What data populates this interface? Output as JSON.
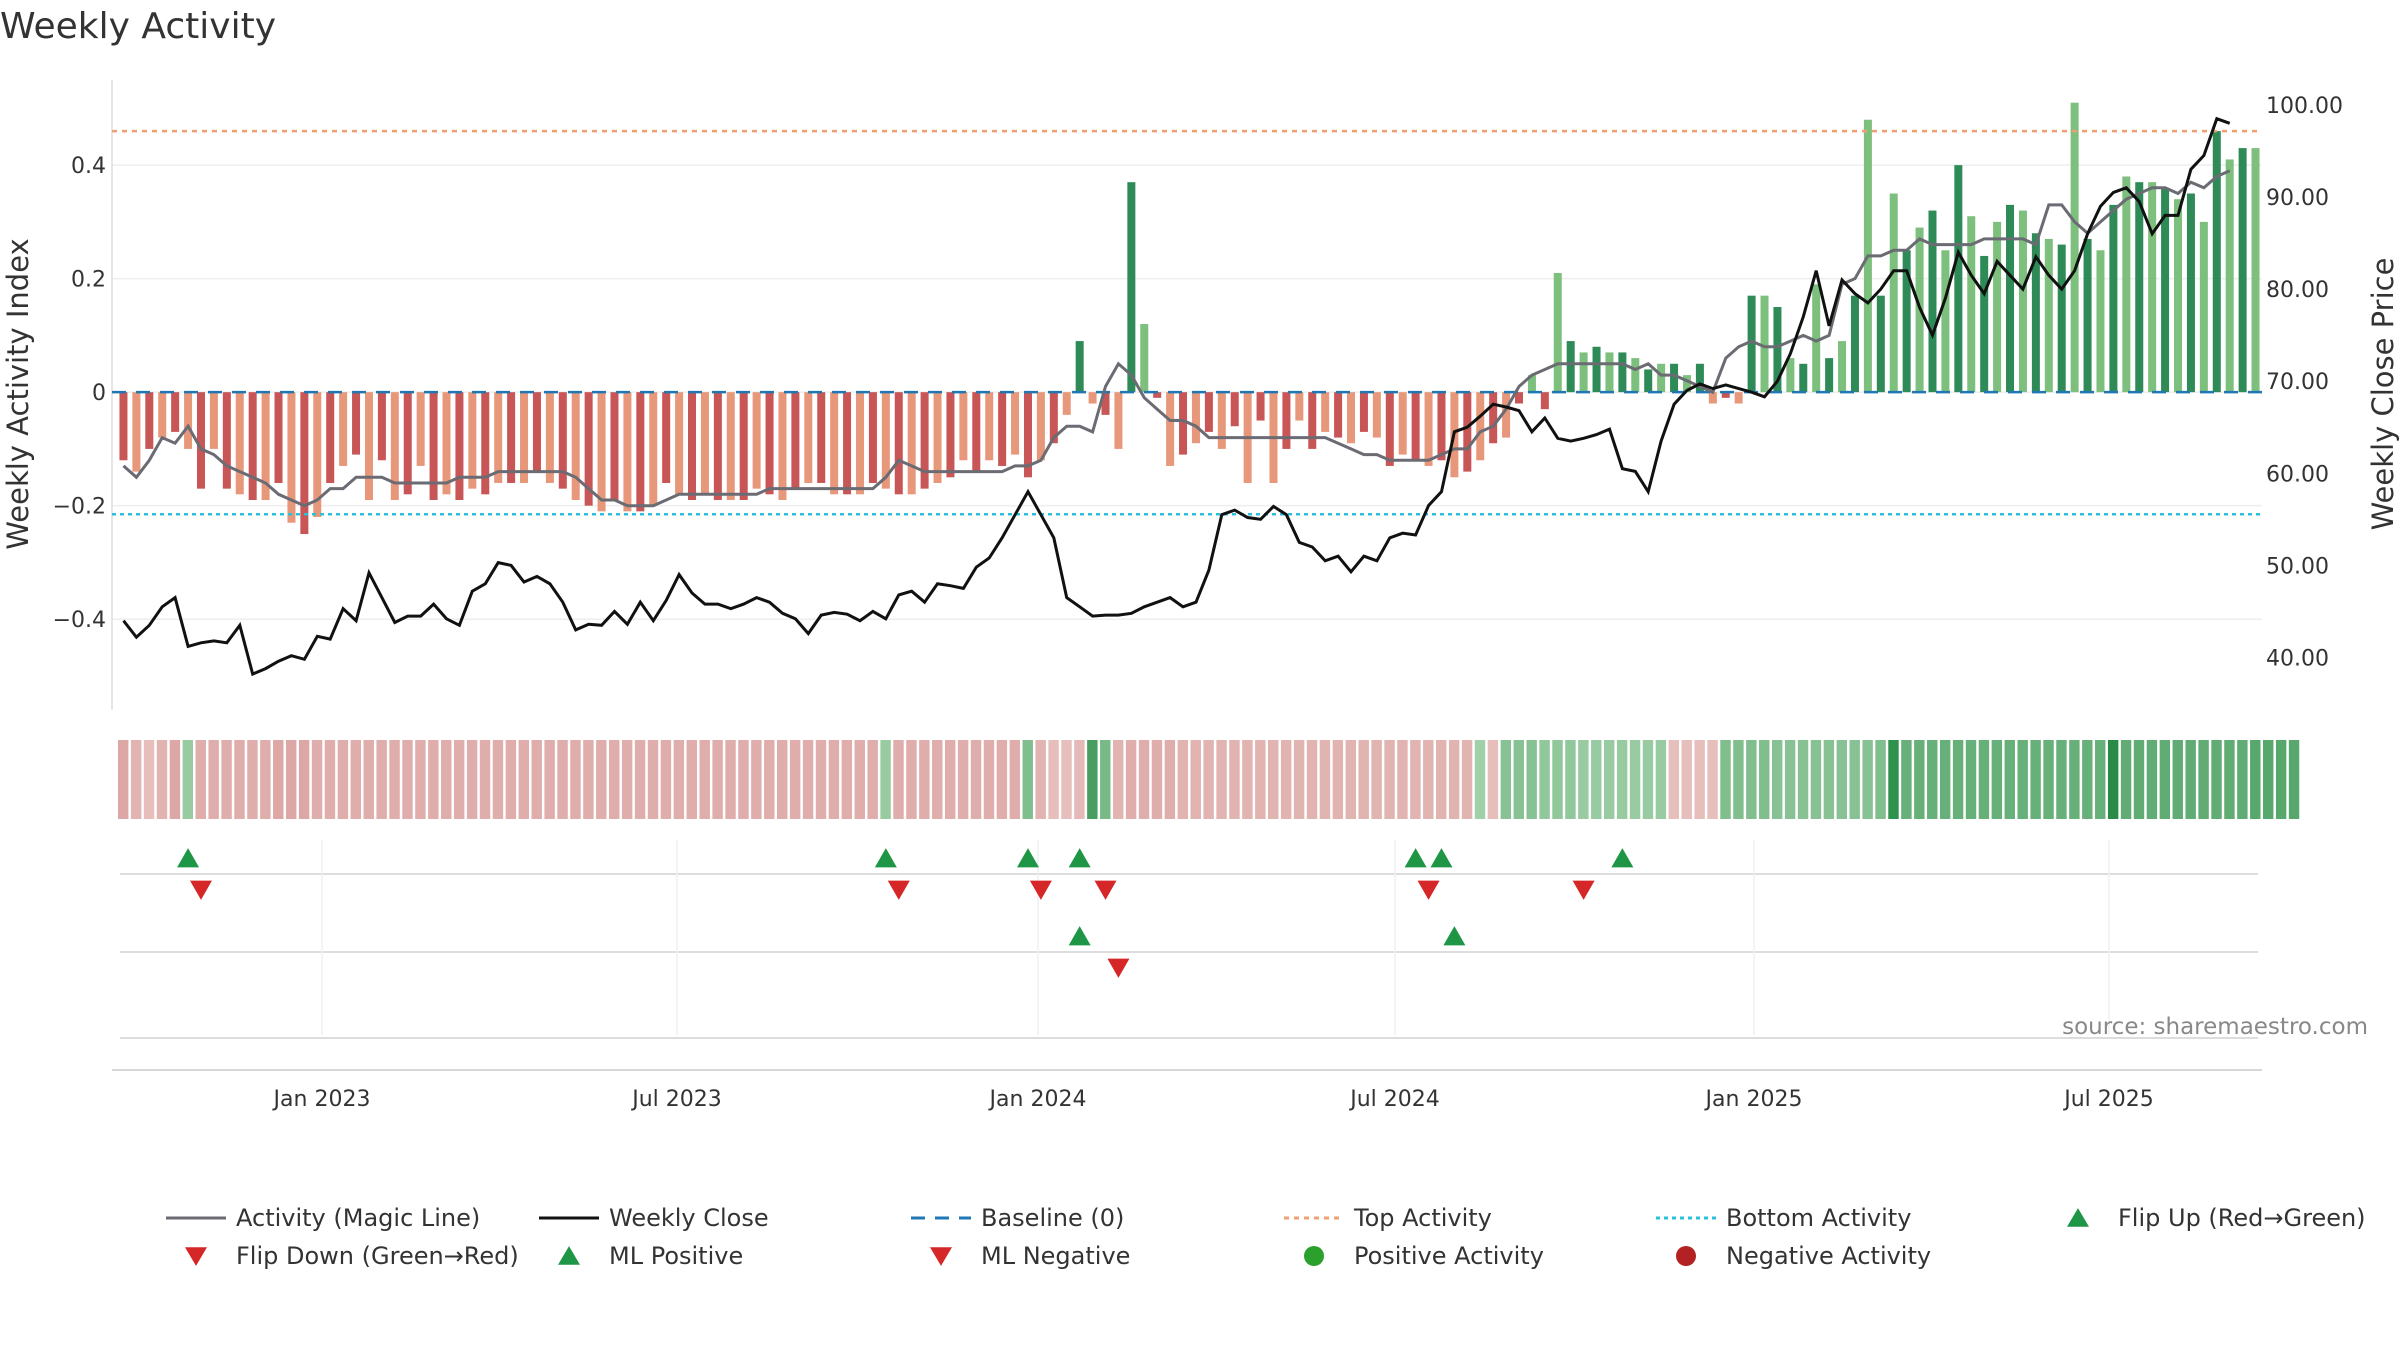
{
  "chart_data": {
    "type": "bar",
    "title": "Weekly Activity",
    "ylabel_left": "Weekly Activity Index",
    "ylabel_right": "Weekly Close Price",
    "left_ticks": [
      "0.4",
      "0.2",
      "0",
      "−0.2",
      "−0.4"
    ],
    "left_tick_values": [
      0.4,
      0.2,
      0,
      -0.2,
      -0.4
    ],
    "right_ticks": [
      "100.00",
      "90.00",
      "80.00",
      "70.00",
      "60.00",
      "50.00",
      "40.00"
    ],
    "right_tick_values": [
      100,
      90,
      80,
      70,
      60,
      50,
      40
    ],
    "ylim_left": [
      -0.56,
      0.55
    ],
    "ylim_right": [
      34.3,
      102.7
    ],
    "x_ticks": [
      "Jan 2023",
      "Jul 2023",
      "Jan 2024",
      "Jul 2024",
      "Jan 2025",
      "Jul 2025"
    ],
    "top_activity": 0.46,
    "bottom_activity": -0.215,
    "baseline": 0,
    "colors": {
      "pos_dark": "#2e8b57",
      "pos_light": "#7dbf7d",
      "neg_dark": "#c85656",
      "neg_light": "#e8987a",
      "magic_line": "#6b6b73",
      "close_line": "#111111",
      "baseline": "#1f77b4",
      "top": "#f0a070",
      "bottom": "#29c0dc",
      "flip_up": "#1e9646",
      "flip_down": "#d62728",
      "pos_dot": "#2ca02c",
      "neg_dot": "#b22222"
    },
    "activity": [
      -0.12,
      -0.14,
      -0.1,
      -0.08,
      -0.07,
      -0.1,
      -0.17,
      -0.1,
      -0.17,
      -0.18,
      -0.19,
      -0.19,
      -0.16,
      -0.23,
      -0.25,
      -0.22,
      -0.16,
      -0.13,
      -0.11,
      -0.19,
      -0.12,
      -0.19,
      -0.18,
      -0.13,
      -0.19,
      -0.18,
      -0.19,
      -0.17,
      -0.18,
      -0.16,
      -0.16,
      -0.16,
      -0.14,
      -0.16,
      -0.17,
      -0.19,
      -0.2,
      -0.21,
      -0.19,
      -0.21,
      -0.21,
      -0.2,
      -0.16,
      -0.18,
      -0.19,
      -0.18,
      -0.19,
      -0.19,
      -0.19,
      -0.17,
      -0.18,
      -0.19,
      -0.17,
      -0.16,
      -0.16,
      -0.18,
      -0.18,
      -0.18,
      -0.16,
      -0.17,
      -0.18,
      -0.18,
      -0.17,
      -0.16,
      -0.15,
      -0.12,
      -0.14,
      -0.12,
      -0.13,
      -0.11,
      -0.15,
      -0.12,
      -0.09,
      -0.04,
      0.09,
      -0.02,
      -0.04,
      -0.1,
      0.37,
      0.12,
      -0.01,
      -0.13,
      -0.11,
      -0.09,
      -0.07,
      -0.1,
      -0.06,
      -0.16,
      -0.05,
      -0.16,
      -0.1,
      -0.05,
      -0.1,
      -0.07,
      -0.08,
      -0.09,
      -0.07,
      -0.08,
      -0.13,
      -0.11,
      -0.12,
      -0.13,
      -0.12,
      -0.15,
      -0.14,
      -0.12,
      -0.09,
      -0.08,
      -0.02,
      0.03,
      -0.03,
      0.21,
      0.09,
      0.07,
      0.08,
      0.07,
      0.07,
      0.06,
      0.04,
      0.05,
      0.05,
      0.03,
      0.05,
      -0.02,
      -0.01,
      -0.02,
      0.17,
      0.17,
      0.15,
      0.06,
      0.05,
      0.19,
      0.06,
      0.09,
      0.17,
      0.48,
      0.17,
      0.35,
      0.25,
      0.29,
      0.32,
      0.25,
      0.4,
      0.31,
      0.24,
      0.3,
      0.33,
      0.32,
      0.28,
      0.27,
      0.26,
      0.51,
      0.27,
      0.25,
      0.33,
      0.38,
      0.37,
      0.37,
      0.36,
      0.34,
      0.35,
      0.3,
      0.46,
      0.41,
      0.43,
      0.43
    ],
    "magic_line": [
      -0.13,
      -0.15,
      -0.12,
      -0.08,
      -0.09,
      -0.06,
      -0.1,
      -0.11,
      -0.13,
      -0.14,
      -0.15,
      -0.16,
      -0.18,
      -0.19,
      -0.2,
      -0.19,
      -0.17,
      -0.17,
      -0.15,
      -0.15,
      -0.15,
      -0.16,
      -0.16,
      -0.16,
      -0.16,
      -0.16,
      -0.15,
      -0.15,
      -0.15,
      -0.14,
      -0.14,
      -0.14,
      -0.14,
      -0.14,
      -0.14,
      -0.15,
      -0.17,
      -0.19,
      -0.19,
      -0.2,
      -0.2,
      -0.2,
      -0.19,
      -0.18,
      -0.18,
      -0.18,
      -0.18,
      -0.18,
      -0.18,
      -0.18,
      -0.17,
      -0.17,
      -0.17,
      -0.17,
      -0.17,
      -0.17,
      -0.17,
      -0.17,
      -0.17,
      -0.15,
      -0.12,
      -0.13,
      -0.14,
      -0.14,
      -0.14,
      -0.14,
      -0.14,
      -0.14,
      -0.14,
      -0.13,
      -0.13,
      -0.12,
      -0.08,
      -0.06,
      -0.06,
      -0.07,
      0.01,
      0.05,
      0.03,
      -0.01,
      -0.03,
      -0.05,
      -0.05,
      -0.06,
      -0.08,
      -0.08,
      -0.08,
      -0.08,
      -0.08,
      -0.08,
      -0.08,
      -0.08,
      -0.08,
      -0.08,
      -0.09,
      -0.1,
      -0.11,
      -0.11,
      -0.12,
      -0.12,
      -0.12,
      -0.12,
      -0.11,
      -0.1,
      -0.1,
      -0.07,
      -0.06,
      -0.03,
      0.01,
      0.03,
      0.04,
      0.05,
      0.05,
      0.05,
      0.05,
      0.05,
      0.05,
      0.04,
      0.05,
      0.03,
      0.03,
      0.02,
      0.01,
      0.0,
      0.06,
      0.08,
      0.09,
      0.08,
      0.08,
      0.09,
      0.1,
      0.09,
      0.1,
      0.19,
      0.2,
      0.24,
      0.24,
      0.25,
      0.25,
      0.27,
      0.26,
      0.26,
      0.26,
      0.26,
      0.27,
      0.27,
      0.27,
      0.27,
      0.26,
      0.33,
      0.33,
      0.3,
      0.28,
      0.3,
      0.32,
      0.34,
      0.35,
      0.36,
      0.36,
      0.35,
      0.37,
      0.36,
      0.38,
      0.39
    ],
    "close": [
      44,
      42.2,
      43.5,
      45.5,
      46.5,
      41.2,
      41.6,
      41.8,
      41.6,
      43.5,
      38.2,
      38.8,
      39.6,
      40.2,
      39.8,
      42.3,
      42.0,
      45.3,
      44.0,
      49.2,
      46.5,
      43.8,
      44.5,
      44.5,
      45.8,
      44.2,
      43.5,
      47.2,
      48.0,
      50.3,
      50.0,
      48.2,
      48.8,
      48.0,
      46.0,
      43.0,
      43.6,
      43.5,
      45.0,
      43.6,
      46.0,
      44.0,
      46.2,
      49.0,
      47.0,
      45.8,
      45.8,
      45.3,
      45.8,
      46.5,
      46.0,
      44.8,
      44.2,
      42.6,
      44.6,
      44.9,
      44.7,
      44.0,
      45.0,
      44.2,
      46.8,
      47.2,
      46.0,
      48.0,
      47.8,
      47.5,
      49.8,
      50.8,
      53.0,
      55.5,
      58.0,
      55.5,
      53.0,
      46.5,
      45.5,
      44.5,
      44.6,
      44.6,
      44.8,
      45.5,
      46.0,
      46.5,
      45.5,
      46.0,
      49.5,
      55.5,
      56.0,
      55.2,
      55.0,
      56.4,
      55.5,
      52.5,
      52.0,
      50.5,
      51.0,
      49.3,
      51.0,
      50.5,
      53.0,
      53.5,
      53.3,
      56.5,
      58.0,
      64.5,
      65.0,
      66.2,
      67.5,
      67.2,
      66.8,
      64.5,
      66.0,
      63.8,
      63.5,
      63.8,
      64.2,
      64.8,
      60.5,
      60.2,
      58.0,
      63.5,
      67.5,
      69.0,
      69.7,
      69.2,
      69.6,
      69.2,
      68.8,
      68.3,
      70.0,
      73.0,
      77.0,
      82.0,
      76.0,
      81.0,
      79.5,
      78.5,
      80.0,
      82.0,
      82.0,
      78.0,
      75.0,
      79.0,
      84.0,
      81.5,
      79.5,
      83.0,
      81.5,
      80.0,
      83.5,
      81.5,
      80.0,
      82.0,
      86.0,
      89.0,
      90.5,
      91.0,
      89.5,
      86.0,
      88.0,
      88.0,
      93.0,
      94.5,
      98.5,
      98.0
    ],
    "strip": [
      -0.4,
      -0.3,
      -0.2,
      -0.3,
      -0.4,
      0.3,
      -0.35,
      -0.35,
      -0.35,
      -0.35,
      -0.35,
      -0.35,
      -0.4,
      -0.4,
      -0.4,
      -0.35,
      -0.35,
      -0.35,
      -0.35,
      -0.35,
      -0.35,
      -0.35,
      -0.35,
      -0.35,
      -0.35,
      -0.35,
      -0.35,
      -0.35,
      -0.35,
      -0.35,
      -0.35,
      -0.35,
      -0.35,
      -0.35,
      -0.35,
      -0.35,
      -0.35,
      -0.35,
      -0.35,
      -0.35,
      -0.35,
      -0.35,
      -0.35,
      -0.35,
      -0.35,
      -0.35,
      -0.35,
      -0.35,
      -0.35,
      -0.35,
      -0.35,
      -0.35,
      -0.35,
      -0.35,
      -0.35,
      -0.35,
      -0.35,
      -0.35,
      -0.35,
      0.3,
      -0.35,
      -0.35,
      -0.35,
      -0.35,
      -0.35,
      -0.35,
      -0.35,
      -0.35,
      -0.35,
      -0.35,
      0.45,
      -0.3,
      -0.2,
      -0.2,
      -0.25,
      0.8,
      0.5,
      -0.3,
      -0.35,
      -0.35,
      -0.35,
      -0.35,
      -0.3,
      -0.3,
      -0.3,
      -0.3,
      -0.3,
      -0.3,
      -0.3,
      -0.3,
      -0.3,
      -0.3,
      -0.3,
      -0.3,
      -0.3,
      -0.3,
      -0.3,
      -0.3,
      -0.3,
      -0.3,
      -0.3,
      -0.3,
      -0.3,
      -0.3,
      -0.3,
      0.25,
      -0.2,
      0.4,
      0.4,
      0.4,
      0.35,
      0.35,
      0.35,
      0.3,
      0.3,
      0.3,
      0.3,
      0.3,
      0.3,
      0.3,
      -0.2,
      -0.2,
      -0.2,
      -0.2,
      0.45,
      0.45,
      0.45,
      0.45,
      0.4,
      0.4,
      0.4,
      0.4,
      0.4,
      0.4,
      0.4,
      0.4,
      0.45,
      0.95,
      0.6,
      0.6,
      0.6,
      0.6,
      0.6,
      0.6,
      0.6,
      0.6,
      0.6,
      0.6,
      0.6,
      0.6,
      0.6,
      0.6,
      0.6,
      0.6,
      1.0,
      0.65,
      0.65,
      0.65,
      0.65,
      0.65,
      0.65,
      0.65,
      0.65,
      0.65,
      0.65,
      0.7,
      0.7,
      0.7,
      0.7
    ],
    "signal_row1_up": [
      5,
      59,
      70,
      74,
      100,
      102,
      116
    ],
    "signal_row1_down": [
      6,
      60,
      71,
      76,
      101,
      113
    ],
    "signal_row2_up": [
      74,
      103
    ],
    "signal_row2_down": [
      77
    ],
    "legend": [
      "Activity (Magic Line)",
      "Weekly Close",
      "Baseline (0)",
      "Top Activity",
      "Bottom Activity",
      "Flip Up (Red→Green)",
      "Flip Down (Green→Red)",
      "ML Positive",
      "ML Negative",
      "Positive Activity",
      "Negative Activity"
    ],
    "source": "source: sharemaestro.com"
  }
}
